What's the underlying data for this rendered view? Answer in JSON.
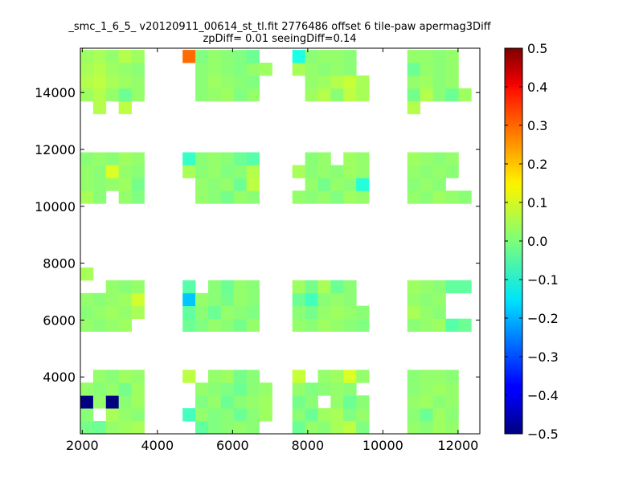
{
  "chart_data": {
    "type": "heatmap",
    "title": "_smc_1_6_5_ v20120911_00614_st_tl.fit 2776486 offset 6 tile-paw apermag3Diff",
    "subtitle": "zpDiff= 0.01 seeingDiff=0.14",
    "xlabel": "",
    "ylabel": "",
    "xlim": [
      1950,
      12580
    ],
    "ylim": [
      2000,
      15560
    ],
    "x_ticks": [
      "2000",
      "4000",
      "6000",
      "8000",
      "10000",
      "12000"
    ],
    "y_ticks": [
      "4000",
      "6000",
      "8000",
      "10000",
      "12000",
      "14000"
    ],
    "colorbar": {
      "colormap": "jet",
      "vmin": -0.5,
      "vmax": 0.5,
      "ticks": [
        "0.5",
        "0.4",
        "0.3",
        "0.2",
        "0.1",
        "0.0",
        "−0.1",
        "−0.2",
        "−0.3",
        "−0.4",
        "−0.5"
      ]
    },
    "cell_size": [
      340,
      450
    ],
    "column_origin": [
      1950,
      2000
    ],
    "columns": [
      2120,
      2460,
      2800,
      3140,
      3480,
      4840,
      5180,
      5520,
      5860,
      6200,
      6540,
      6880,
      7760,
      8100,
      8440,
      8780,
      9120,
      9460,
      10820,
      11160,
      11500,
      11840,
      12180
    ],
    "row_centers": [
      2225,
      2675,
      3125,
      3575,
      4025,
      5825,
      6275,
      6725,
      7175,
      7625,
      10325,
      10775,
      11225,
      11675,
      13475,
      13925,
      14375,
      14825,
      15275
    ],
    "cells": [
      [
        -0.01,
        -0.02,
        0.02,
        0.03,
        0.04,
        null,
        -0.03,
        0.0,
        0.01,
        0.02,
        0.01,
        null,
        -0.02,
        0.02,
        0.01,
        0.04,
        0.06,
        0.0,
        0.02,
        0.01,
        0.03,
        0.02,
        null
      ],
      [
        0.01,
        null,
        0.04,
        0.02,
        0.01,
        -0.06,
        0.02,
        0.0,
        0.01,
        -0.02,
        0.01,
        0.03,
        0.01,
        -0.02,
        0.03,
        0.04,
        0.0,
        0.02,
        0.01,
        -0.02,
        0.03,
        0.01,
        null
      ],
      [
        -0.5,
        0.02,
        -0.5,
        0.01,
        0.03,
        null,
        0.0,
        0.02,
        -0.02,
        0.01,
        0.02,
        0.03,
        -0.01,
        0.01,
        null,
        0.02,
        -0.02,
        0.01,
        0.02,
        0.03,
        0.01,
        0.02,
        null
      ],
      [
        0.02,
        0.01,
        0.02,
        -0.01,
        0.03,
        null,
        0.02,
        0.01,
        0.0,
        -0.02,
        0.01,
        0.02,
        0.02,
        0.0,
        0.01,
        0.02,
        0.01,
        null,
        0.01,
        0.02,
        0.03,
        0.02,
        null
      ],
      [
        null,
        0.02,
        0.01,
        0.03,
        0.02,
        0.06,
        null,
        0.02,
        0.03,
        -0.01,
        0.01,
        null,
        0.07,
        null,
        0.02,
        0.03,
        0.09,
        0.02,
        0.01,
        0.02,
        0.02,
        0.01,
        null
      ],
      [
        0.02,
        0.01,
        0.02,
        0.03,
        null,
        -0.02,
        0.0,
        0.02,
        0.01,
        -0.01,
        0.02,
        null,
        0.02,
        0.01,
        0.03,
        0.02,
        0.01,
        0.0,
        0.01,
        0.02,
        0.03,
        -0.04,
        -0.02
      ],
      [
        0.01,
        0.02,
        0.03,
        0.02,
        0.04,
        -0.03,
        0.01,
        -0.02,
        0.02,
        0.01,
        0.0,
        null,
        0.01,
        -0.01,
        0.02,
        0.03,
        0.02,
        0.01,
        0.04,
        0.02,
        0.01,
        null,
        null
      ],
      [
        0.02,
        0.01,
        0.02,
        0.03,
        0.08,
        -0.18,
        0.02,
        0.01,
        -0.01,
        0.02,
        0.01,
        null,
        -0.02,
        -0.06,
        0.01,
        0.02,
        0.01,
        null,
        0.02,
        0.01,
        0.02,
        null,
        null
      ],
      [
        null,
        null,
        0.02,
        0.01,
        0.02,
        -0.04,
        null,
        0.01,
        -0.02,
        0.02,
        0.01,
        null,
        0.03,
        -0.01,
        0.04,
        -0.02,
        0.01,
        null,
        0.03,
        0.02,
        0.01,
        -0.03,
        -0.03
      ],
      [
        0.04,
        null,
        null,
        null,
        null,
        null,
        null,
        null,
        null,
        null,
        null,
        null,
        null,
        null,
        null,
        null,
        null,
        null,
        null,
        null,
        null,
        null,
        null
      ],
      [
        0.04,
        0.01,
        null,
        0.02,
        0.0,
        null,
        0.02,
        0.01,
        -0.01,
        0.02,
        0.01,
        null,
        0.02,
        0.01,
        0.02,
        0.0,
        0.03,
        0.02,
        0.02,
        0.01,
        0.03,
        0.02,
        0.01
      ],
      [
        0.02,
        0.01,
        0.02,
        0.03,
        -0.01,
        null,
        0.02,
        0.01,
        0.02,
        -0.02,
        0.06,
        null,
        null,
        0.02,
        -0.01,
        0.02,
        0.01,
        -0.09,
        0.01,
        0.02,
        0.01,
        null,
        null
      ],
      [
        0.02,
        0.01,
        0.09,
        0.02,
        0.01,
        0.04,
        0.01,
        0.02,
        0.0,
        0.01,
        0.05,
        null,
        0.04,
        0.01,
        0.02,
        0.01,
        0.03,
        0.02,
        0.02,
        0.01,
        0.02,
        0.01,
        null
      ],
      [
        0.01,
        0.02,
        0.01,
        0.03,
        0.02,
        -0.07,
        0.01,
        0.02,
        0.01,
        -0.02,
        -0.04,
        null,
        null,
        0.01,
        0.02,
        null,
        0.03,
        0.02,
        0.03,
        0.02,
        0.01,
        0.02,
        null
      ],
      [
        null,
        0.05,
        null,
        0.06,
        null,
        null,
        null,
        null,
        null,
        null,
        null,
        null,
        null,
        null,
        null,
        null,
        null,
        null,
        0.05,
        null,
        null,
        null,
        null
      ],
      [
        0.03,
        0.05,
        0.02,
        -0.02,
        0.02,
        null,
        0.01,
        0.02,
        0.03,
        0.0,
        0.02,
        null,
        null,
        0.03,
        0.05,
        0.01,
        0.06,
        0.04,
        -0.01,
        0.05,
        0.01,
        -0.02,
        0.03
      ],
      [
        0.05,
        0.06,
        0.04,
        0.03,
        0.02,
        null,
        0.01,
        0.03,
        0.02,
        0.01,
        0.0,
        null,
        null,
        0.02,
        0.03,
        0.05,
        0.07,
        0.04,
        0.02,
        0.03,
        0.01,
        0.02,
        null
      ],
      [
        0.04,
        0.05,
        0.03,
        0.02,
        0.01,
        null,
        0.01,
        0.02,
        0.01,
        0.0,
        0.02,
        0.03,
        0.04,
        0.02,
        0.01,
        0.02,
        0.01,
        null,
        -0.02,
        0.02,
        0.01,
        0.02,
        null
      ],
      [
        0.03,
        0.04,
        0.02,
        0.05,
        0.03,
        0.27,
        0.0,
        0.02,
        0.01,
        0.0,
        -0.02,
        null,
        -0.1,
        0.01,
        0.02,
        0.02,
        0.01,
        null,
        0.02,
        0.02,
        0.01,
        0.02,
        null
      ]
    ]
  }
}
